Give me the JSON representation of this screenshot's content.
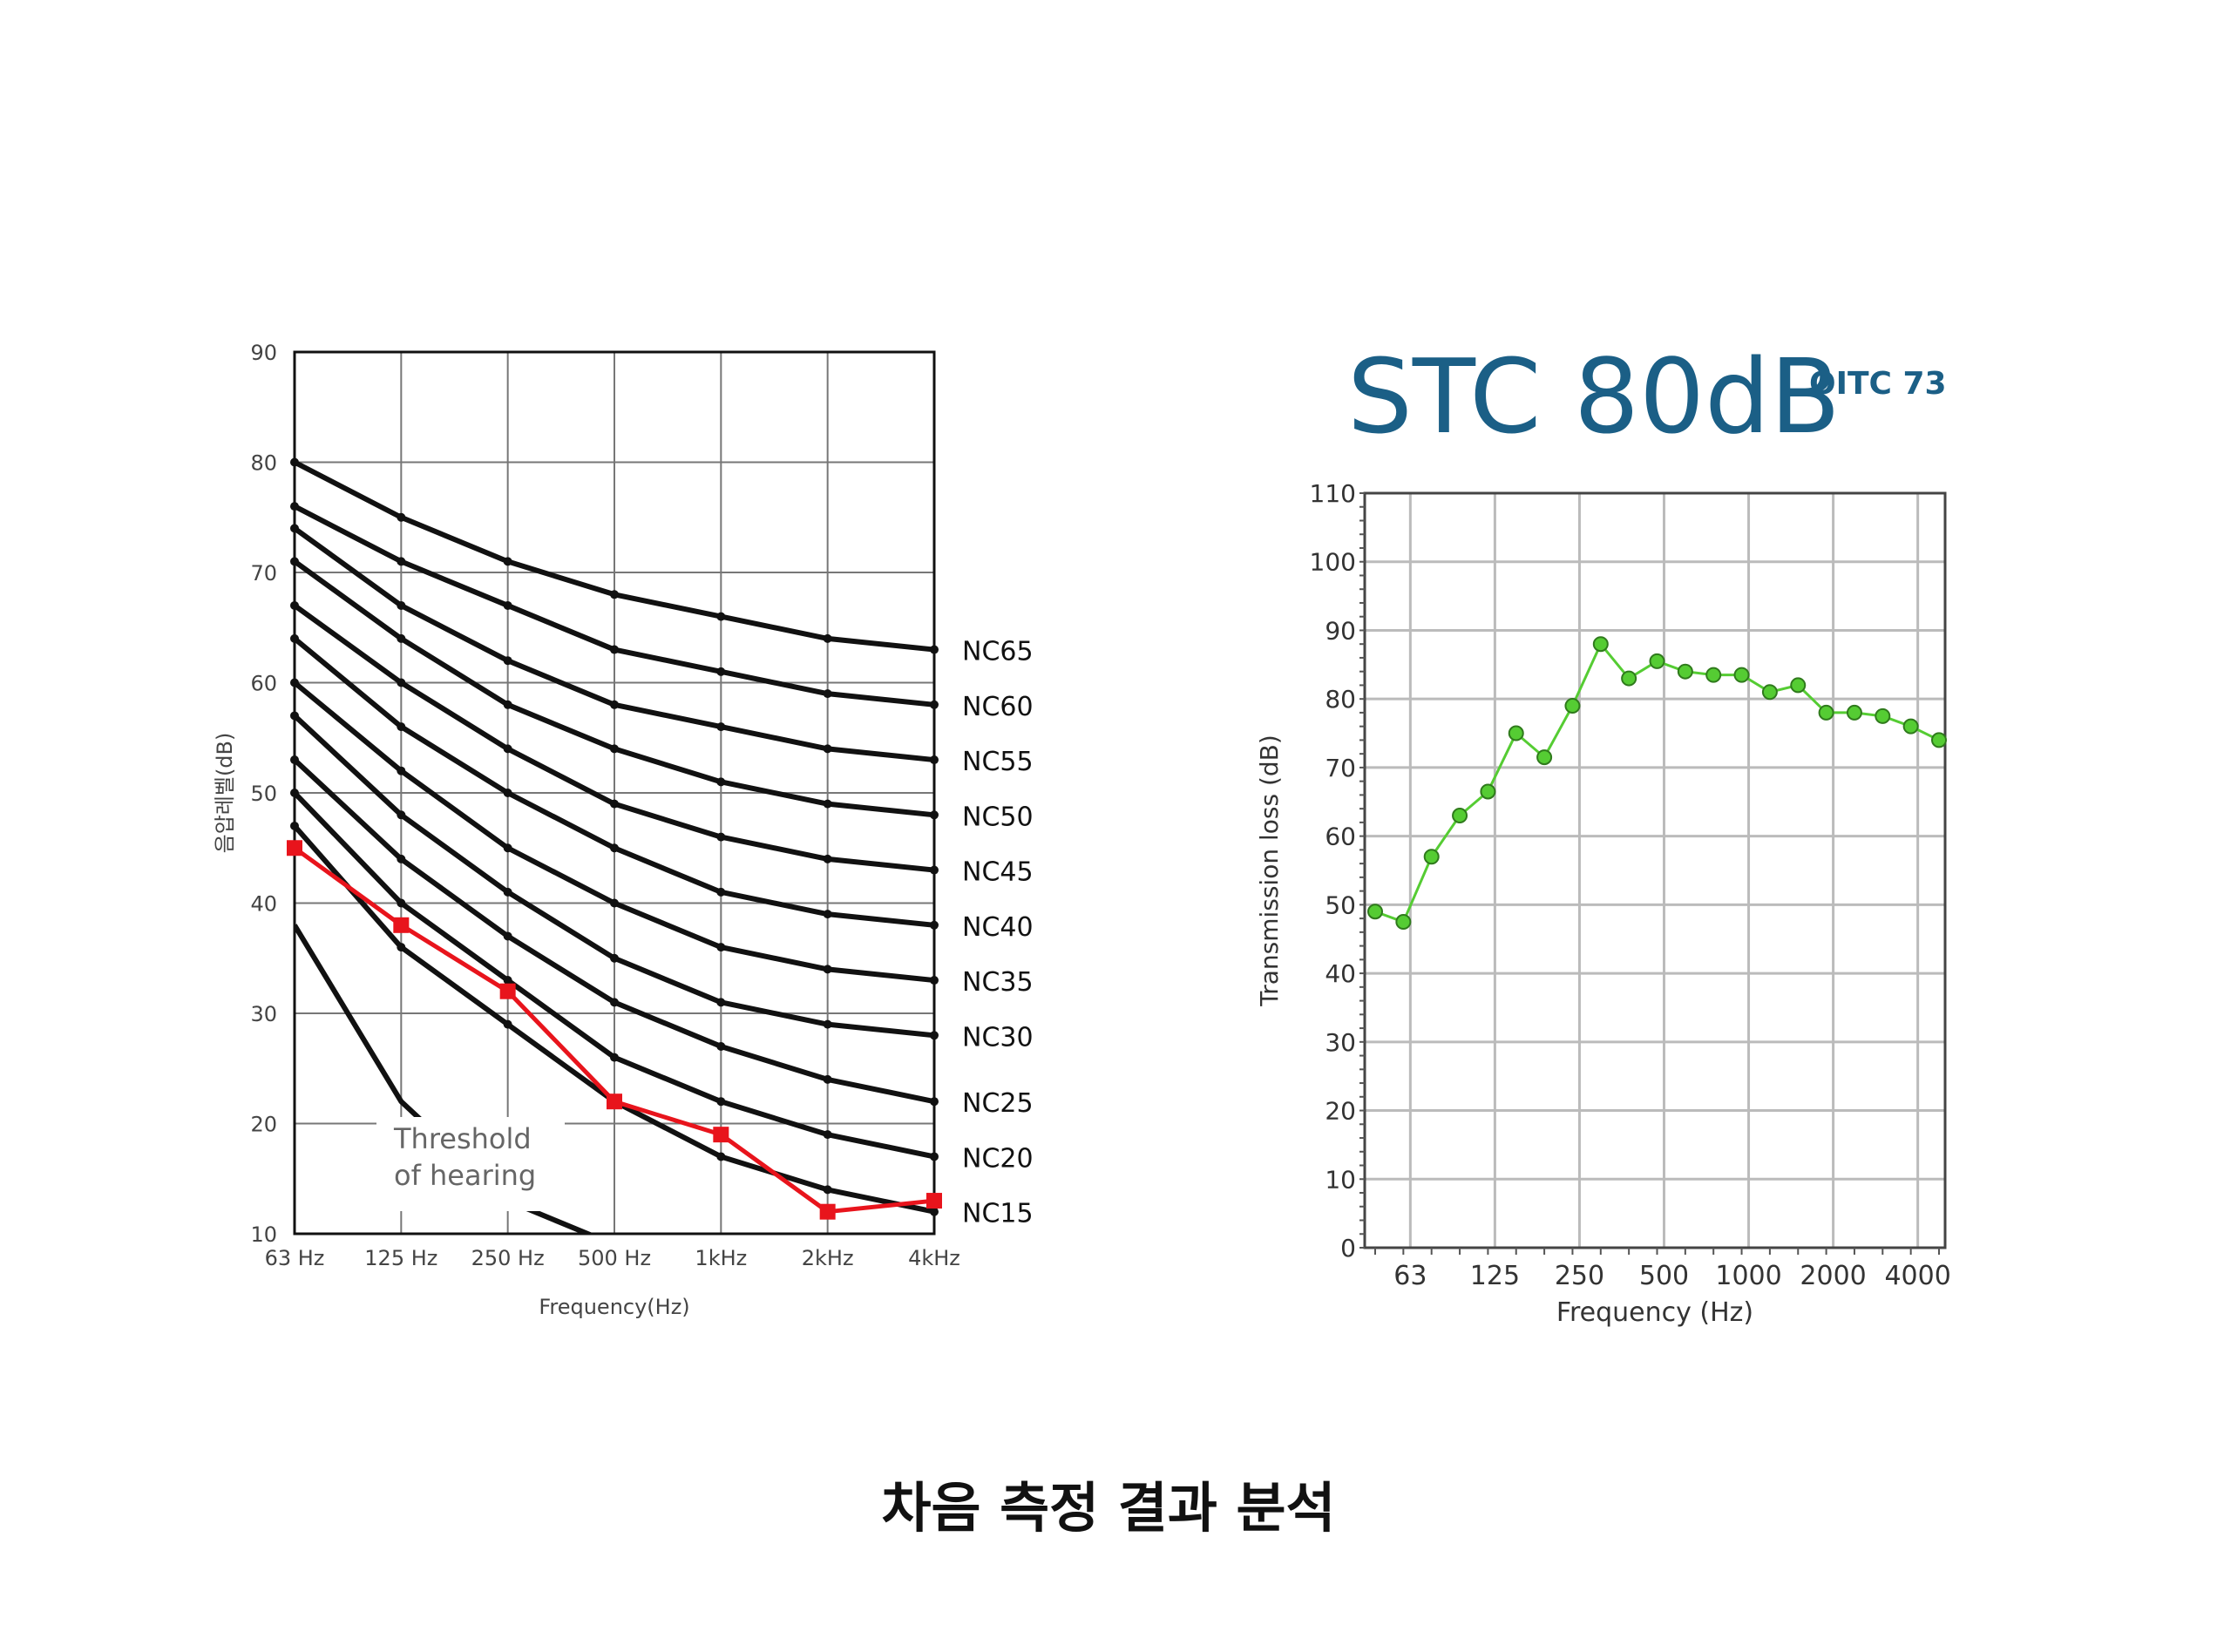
{
  "caption": "차음 측정 결과 분석",
  "chart_data": [
    {
      "type": "line",
      "xlabel": "Frequency(Hz)",
      "ylabel": "음압레벨(dB)",
      "categories": [
        "63 Hz",
        "125 Hz",
        "250 Hz",
        "500 Hz",
        "1kHz",
        "2kHz",
        "4kHz"
      ],
      "ylim": [
        10,
        90
      ],
      "yticks": [
        10,
        20,
        30,
        40,
        50,
        60,
        70,
        80,
        90
      ],
      "grid": true,
      "annotation": "Threshold\nof hearing",
      "threshold_of_hearing": {
        "x": [
          0,
          1,
          2,
          3
        ],
        "y": [
          38,
          22,
          13,
          9
        ]
      },
      "nc_curves": [
        {
          "name": "NC65",
          "values": [
            80,
            75,
            71,
            68,
            66,
            64,
            63
          ]
        },
        {
          "name": "NC60",
          "values": [
            76,
            71,
            67,
            63,
            61,
            59,
            58
          ]
        },
        {
          "name": "NC55",
          "values": [
            74,
            67,
            62,
            58,
            56,
            54,
            53
          ]
        },
        {
          "name": "NC50",
          "values": [
            71,
            64,
            58,
            54,
            51,
            49,
            48
          ]
        },
        {
          "name": "NC45",
          "values": [
            67,
            60,
            54,
            49,
            46,
            44,
            43
          ]
        },
        {
          "name": "NC40",
          "values": [
            64,
            56,
            50,
            45,
            41,
            39,
            38
          ]
        },
        {
          "name": "NC35",
          "values": [
            60,
            52,
            45,
            40,
            36,
            34,
            33
          ]
        },
        {
          "name": "NC30",
          "values": [
            57,
            48,
            41,
            35,
            31,
            29,
            28
          ]
        },
        {
          "name": "NC25",
          "values": [
            53,
            44,
            37,
            31,
            27,
            24,
            22
          ]
        },
        {
          "name": "NC20",
          "values": [
            50,
            40,
            33,
            26,
            22,
            19,
            17
          ]
        },
        {
          "name": "NC15",
          "values": [
            47,
            36,
            29,
            22,
            17,
            14,
            12
          ]
        }
      ],
      "measured": {
        "color": "#e8141c",
        "values": [
          45,
          38,
          32,
          22,
          19,
          12,
          13
        ]
      },
      "curve_color": "#111111"
    },
    {
      "type": "line",
      "title": "STC 80dB",
      "subtitle": "OITC 73",
      "title_color": "#1b5f86",
      "xlabel": "Frequency (Hz)",
      "ylabel": "Transmission loss (dB)",
      "ylim": [
        0,
        110
      ],
      "yticks": [
        0,
        10,
        20,
        30,
        40,
        50,
        60,
        70,
        80,
        90,
        100,
        110
      ],
      "xticks": [
        "63",
        "125",
        "250",
        "500",
        "1000",
        "2000",
        "4000"
      ],
      "grid": true,
      "series_color": "#55cc33",
      "values": [
        49,
        47.5,
        57,
        63,
        66.5,
        75,
        71.5,
        79,
        88,
        83,
        85.5,
        84,
        83.5,
        83.5,
        81,
        82,
        78,
        78,
        77.5,
        76,
        74
      ]
    }
  ]
}
